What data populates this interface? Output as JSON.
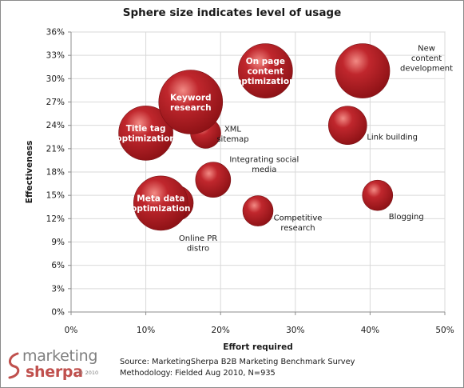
{
  "chart_data": {
    "type": "bubble",
    "title": "Sphere size indicates level of usage",
    "xlabel": "Effort required",
    "ylabel": "Effectiveness",
    "xlim": [
      0,
      50
    ],
    "ylim": [
      0,
      36
    ],
    "x_ticks": [
      "0%",
      "10%",
      "20%",
      "30%",
      "40%",
      "50%"
    ],
    "y_ticks": [
      "0%",
      "3%",
      "6%",
      "9%",
      "12%",
      "15%",
      "18%",
      "21%",
      "24%",
      "27%",
      "30%",
      "33%",
      "36%"
    ],
    "grid": true,
    "bubble_color": "#c0272d",
    "points": [
      {
        "label": "Keyword research",
        "label_lines": [
          "Keyword",
          "research"
        ],
        "x": 16,
        "y": 27,
        "size": "very large",
        "label_style": "inside"
      },
      {
        "label": "Title tag optimization",
        "label_lines": [
          "Title tag",
          "optimization"
        ],
        "x": 10,
        "y": 23,
        "size": "large",
        "label_style": "inside"
      },
      {
        "label": "Meta data optimization",
        "label_lines": [
          "Meta data",
          "optimization"
        ],
        "x": 12,
        "y": 14,
        "size": "large",
        "label_style": "inside"
      },
      {
        "label": "On page content optimization",
        "label_lines": [
          "On page",
          "content",
          "optimization"
        ],
        "x": 26,
        "y": 31,
        "size": "medium-large",
        "label_style": "inside"
      },
      {
        "label": "New content development",
        "label_lines": [
          "New",
          "content",
          "development"
        ],
        "x": 39,
        "y": 31,
        "size": "medium-large",
        "label_style": "outside"
      },
      {
        "label": "Link building",
        "label_lines": [
          "Link building"
        ],
        "x": 37,
        "y": 24,
        "size": "medium",
        "label_style": "outside"
      },
      {
        "label": "XML sitemap",
        "label_lines": [
          "XML",
          "sitemap"
        ],
        "x": 18,
        "y": 23,
        "size": "small",
        "label_style": "outside"
      },
      {
        "label": "Integrating social media",
        "label_lines": [
          "Integrating social",
          "media"
        ],
        "x": 19,
        "y": 17,
        "size": "medium-small",
        "label_style": "outside"
      },
      {
        "label": "Online PR distro",
        "label_lines": [
          "Online PR",
          "distro"
        ],
        "x": 14,
        "y": 14,
        "size": "medium-small",
        "label_style": "outside"
      },
      {
        "label": "Competitive research",
        "label_lines": [
          "Competitive",
          "research"
        ],
        "x": 25,
        "y": 13,
        "size": "small",
        "label_style": "outside"
      },
      {
        "label": "Blogging",
        "label_lines": [
          "Blogging"
        ],
        "x": 41,
        "y": 15,
        "size": "small",
        "label_style": "outside"
      }
    ]
  },
  "logo": {
    "line1": "marketing",
    "line2": "sherpa",
    "copyright": "© 2010"
  },
  "source_lines": [
    "Source: MarketingSherpa B2B Marketing Benchmark Survey",
    "Methodology: Fielded Aug 2010, N=935"
  ]
}
